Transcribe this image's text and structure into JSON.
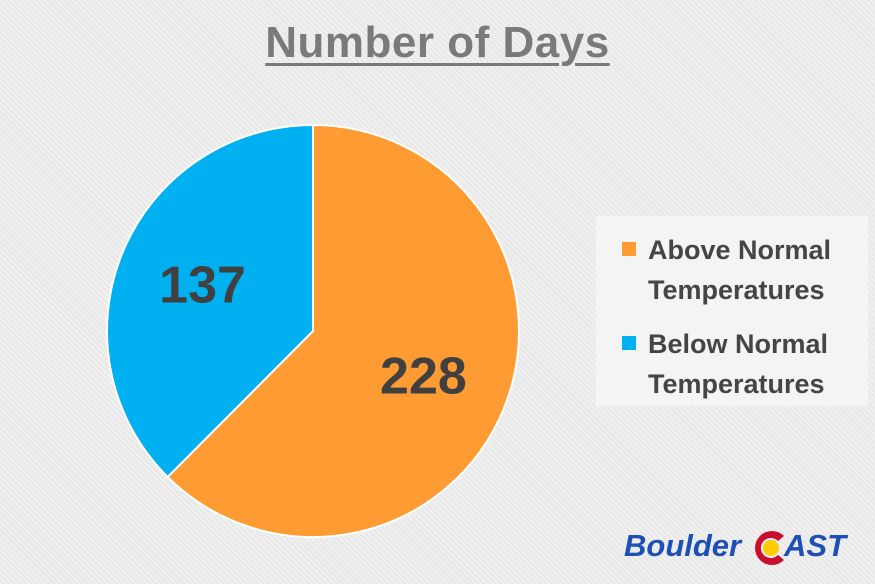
{
  "chart_data": {
    "type": "pie",
    "title": "Number of Days",
    "slices": [
      {
        "label": "Above Normal Temperatures",
        "value": 228,
        "display": "228",
        "color": "#ff9b33"
      },
      {
        "label": "Below Normal Temperatures",
        "value": 137,
        "display": "137",
        "color": "#00b0f0"
      }
    ],
    "legend": {
      "placement": "right",
      "items": [
        "Above Normal Temperatures",
        "Below Normal Temperatures"
      ]
    }
  },
  "logo": {
    "part1": "Boulder",
    "part2": "AST"
  }
}
